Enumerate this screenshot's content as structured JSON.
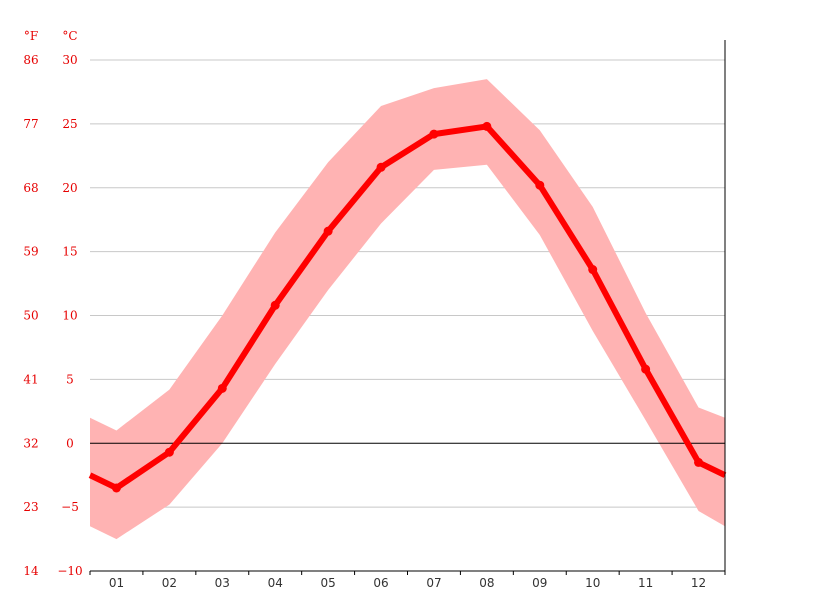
{
  "chart_data": {
    "type": "line",
    "units": {
      "f": "°F",
      "c": "°C"
    },
    "y_ticks_c": [
      "30",
      "25",
      "20",
      "15",
      "10",
      "5",
      "0",
      "−5",
      "−10"
    ],
    "y_ticks_f": [
      "86",
      "77",
      "68",
      "59",
      "50",
      "41",
      "32",
      "23",
      "14"
    ],
    "ylim_c": [
      -10,
      30
    ],
    "categories": [
      "01",
      "02",
      "03",
      "04",
      "05",
      "06",
      "07",
      "08",
      "09",
      "10",
      "11",
      "12"
    ],
    "series": [
      {
        "values": [
          -3.5,
          -0.7,
          4.3,
          10.8,
          16.6,
          21.6,
          24.2,
          24.8,
          20.2,
          13.6,
          5.8,
          -1.5
        ]
      }
    ],
    "band_max": [
      1.0,
      4.2,
      10.0,
      16.5,
      22.0,
      26.4,
      27.8,
      28.5,
      24.5,
      18.5,
      10.2,
      2.8
    ],
    "band_min": [
      -7.5,
      -4.8,
      0.0,
      6.2,
      12.0,
      17.2,
      21.4,
      21.8,
      16.3,
      8.8,
      1.8,
      -5.3
    ],
    "edge_values": {
      "start": -2.5,
      "end": -2.5
    },
    "edge_band_max": {
      "start": 2.0,
      "end": 2.0
    },
    "edge_band_min": {
      "start": -6.5,
      "end": -6.5
    },
    "colors": {
      "line": "#ff0000",
      "band": "#ffb3b3",
      "labels": "#e60000",
      "grid": "#c8c8c8"
    },
    "grid": true
  }
}
